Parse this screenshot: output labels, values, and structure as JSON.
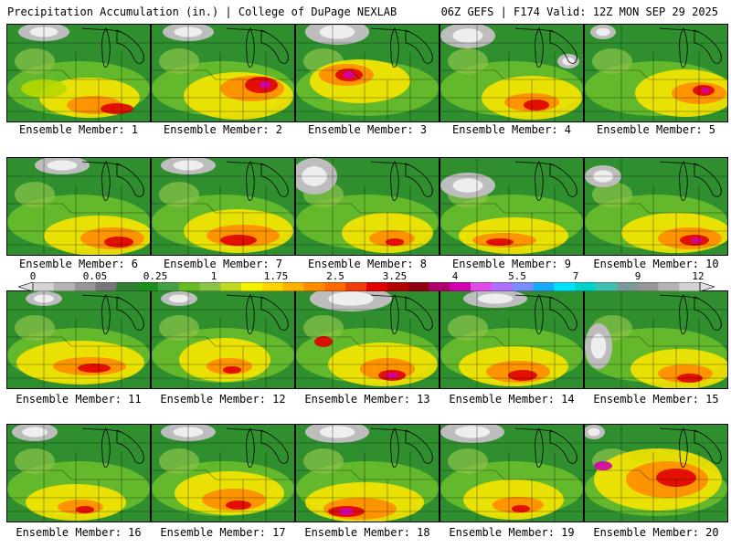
{
  "header": {
    "left": "Precipitation Accumulation (in.) | College of DuPage NEXLAB",
    "right": "06Z GEFS | F174 Valid: 12Z MON SEP 29 2025"
  },
  "legend": {
    "tick_labels": [
      "0",
      "0.05",
      "0.25",
      "1",
      "1.75",
      "2.5",
      "3.25",
      "4",
      "5.5",
      "7",
      "9",
      "12"
    ],
    "colors": [
      "#d2d2d2",
      "#b4b4b4",
      "#969696",
      "#787878",
      "#2e7d32",
      "#1b8f1b",
      "#43a047",
      "#66bb22",
      "#8bc34a",
      "#c0d820",
      "#f2f200",
      "#ffd400",
      "#ffb000",
      "#ff8c00",
      "#ff6a00",
      "#f03c0a",
      "#e00000",
      "#b40000",
      "#900014",
      "#b0006e",
      "#d000b0",
      "#e04ce8",
      "#b070ff",
      "#7a8cff",
      "#1aa8ff",
      "#00e0ff",
      "#00d2c8",
      "#40c0b0",
      "#7a9a9a",
      "#969696",
      "#b4b4b4",
      "#d2d2d2"
    ]
  },
  "panels": [
    {
      "label": "Ensemble Member: 1"
    },
    {
      "label": "Ensemble Member: 2"
    },
    {
      "label": "Ensemble Member: 3"
    },
    {
      "label": "Ensemble Member: 4"
    },
    {
      "label": "Ensemble Member: 5"
    },
    {
      "label": "Ensemble Member: 6"
    },
    {
      "label": "Ensemble Member: 7"
    },
    {
      "label": "Ensemble Member: 8"
    },
    {
      "label": "Ensemble Member: 9"
    },
    {
      "label": "Ensemble Member: 10"
    },
    {
      "label": "Ensemble Member: 11"
    },
    {
      "label": "Ensemble Member: 12"
    },
    {
      "label": "Ensemble Member: 13"
    },
    {
      "label": "Ensemble Member: 14"
    },
    {
      "label": "Ensemble Member: 15"
    },
    {
      "label": "Ensemble Member: 16"
    },
    {
      "label": "Ensemble Member: 17"
    },
    {
      "label": "Ensemble Member: 18"
    },
    {
      "label": "Ensemble Member: 19"
    },
    {
      "label": "Ensemble Member: 20"
    }
  ]
}
